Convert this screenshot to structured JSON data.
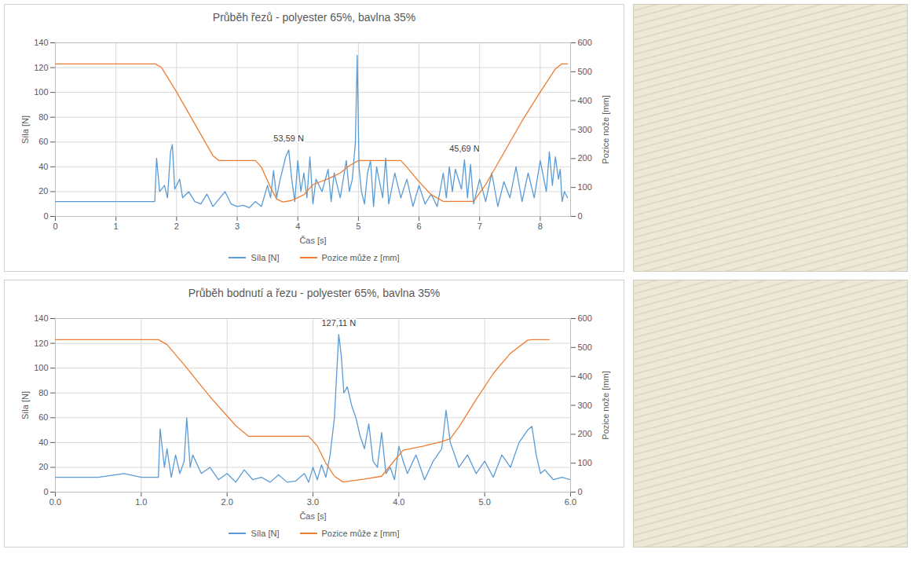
{
  "chart_data": [
    {
      "type": "line",
      "title": "Průběh řezů - polyester 65%, bavlna 35%",
      "x_label": "Čas [s]",
      "y_label": "Síla [N]",
      "y2_label": "Pozice nože [mm]",
      "xlim": [
        0,
        8.5
      ],
      "xticks": [
        0,
        1,
        2,
        3,
        4,
        5,
        6,
        7,
        8
      ],
      "ylim": [
        0,
        140
      ],
      "yticks": [
        0,
        20,
        40,
        60,
        80,
        100,
        120,
        140
      ],
      "y2lim": [
        0,
        600
      ],
      "y2ticks": [
        0,
        100,
        200,
        300,
        400,
        500,
        600
      ],
      "grid": true,
      "legend": "bottom",
      "series": [
        {
          "name": "Síla [N]",
          "color": "#5B9BD5",
          "x": [
            0,
            0.5,
            1.0,
            1.5,
            1.64,
            1.67,
            1.72,
            1.8,
            1.85,
            1.9,
            1.93,
            1.97,
            2.05,
            2.1,
            2.2,
            2.3,
            2.4,
            2.5,
            2.6,
            2.7,
            2.8,
            2.9,
            3.0,
            3.1,
            3.2,
            3.3,
            3.4,
            3.5,
            3.55,
            3.6,
            3.65,
            3.7,
            3.8,
            3.85,
            3.9,
            3.95,
            4.0,
            4.05,
            4.1,
            4.15,
            4.2,
            4.25,
            4.3,
            4.4,
            4.5,
            4.55,
            4.6,
            4.7,
            4.8,
            4.85,
            4.9,
            4.95,
            4.98,
            5.01,
            5.05,
            5.1,
            5.15,
            5.2,
            5.25,
            5.3,
            5.4,
            5.45,
            5.5,
            5.6,
            5.7,
            5.8,
            5.9,
            6.0,
            6.1,
            6.2,
            6.3,
            6.4,
            6.45,
            6.5,
            6.55,
            6.6,
            6.7,
            6.75,
            6.8,
            6.85,
            6.9,
            7.0,
            7.1,
            7.2,
            7.3,
            7.4,
            7.5,
            7.6,
            7.7,
            7.8,
            7.9,
            8.0,
            8.1,
            8.15,
            8.2,
            8.25,
            8.3,
            8.33,
            8.36,
            8.4,
            8.45
          ],
          "values": [
            12,
            12,
            12,
            12,
            12,
            47,
            20,
            25,
            15,
            52,
            58,
            22,
            30,
            15,
            20,
            12,
            10,
            18,
            8,
            14,
            20,
            10,
            8,
            9,
            7,
            12,
            8,
            25,
            15,
            37,
            15,
            28,
            48,
            53.59,
            30,
            12,
            45,
            20,
            35,
            15,
            48,
            10,
            30,
            20,
            38,
            12,
            35,
            15,
            45,
            20,
            30,
            60,
            130,
            40,
            20,
            10,
            35,
            45,
            8,
            40,
            15,
            47,
            10,
            35,
            15,
            30,
            8,
            25,
            10,
            18,
            8,
            35,
            15,
            40,
            20,
            38,
            22,
            45.69,
            15,
            42,
            10,
            30,
            12,
            35,
            8,
            28,
            15,
            40,
            12,
            35,
            15,
            45,
            20,
            52,
            25,
            48,
            30,
            38,
            12,
            20,
            15
          ]
        },
        {
          "name": "Pozice může z [mm]",
          "color": "#ED7D31",
          "axis": "y2",
          "x": [
            0,
            1.65,
            1.75,
            2.0,
            2.3,
            2.6,
            2.7,
            3.3,
            3.4,
            3.55,
            3.65,
            3.75,
            3.9,
            4.1,
            4.25,
            4.5,
            4.7,
            4.85,
            5.0,
            5.7,
            5.8,
            6.0,
            6.2,
            6.4,
            6.9,
            7.1,
            7.4,
            7.7,
            8.0,
            8.25,
            8.35,
            8.45
          ],
          "values": [
            527,
            527,
            515,
            430,
            320,
            210,
            193,
            193,
            170,
            100,
            60,
            50,
            55,
            75,
            110,
            130,
            150,
            175,
            193,
            193,
            170,
            120,
            75,
            52,
            52,
            110,
            220,
            330,
            430,
            510,
            527,
            527
          ]
        }
      ],
      "annotations": [
        {
          "x": 3.85,
          "y": 53.59,
          "label": "53,59 N"
        },
        {
          "x": 6.75,
          "y": 45.69,
          "label": "45,69 N"
        }
      ]
    },
    {
      "type": "line",
      "title": "Průběh bodnutí a řezu - polyester 65%, bavlna 35%",
      "x_label": "Čas [s]",
      "y_label": "Síla [N]",
      "y2_label": "Pozice nože [mm]",
      "xlim": [
        0,
        6
      ],
      "xticks": [
        0,
        1,
        2,
        3,
        4,
        5,
        6
      ],
      "ylim": [
        0,
        140
      ],
      "yticks": [
        0,
        20,
        40,
        60,
        80,
        100,
        120,
        140
      ],
      "y2lim": [
        0,
        600
      ],
      "y2ticks": [
        0,
        100,
        200,
        300,
        400,
        500,
        600
      ],
      "grid": true,
      "legend": "bottom",
      "series": [
        {
          "name": "Síla [N]",
          "color": "#5B9BD5",
          "x": [
            0,
            0.5,
            0.8,
            1.0,
            1.2,
            1.22,
            1.27,
            1.3,
            1.35,
            1.4,
            1.45,
            1.5,
            1.53,
            1.57,
            1.6,
            1.7,
            1.8,
            1.9,
            2.0,
            2.1,
            2.2,
            2.3,
            2.4,
            2.5,
            2.6,
            2.7,
            2.8,
            2.9,
            2.95,
            3.0,
            3.05,
            3.1,
            3.15,
            3.2,
            3.25,
            3.3,
            3.33,
            3.36,
            3.4,
            3.45,
            3.5,
            3.55,
            3.6,
            3.65,
            3.7,
            3.75,
            3.8,
            3.85,
            3.9,
            3.95,
            4.0,
            4.05,
            4.1,
            4.2,
            4.3,
            4.4,
            4.5,
            4.55,
            4.6,
            4.7,
            4.8,
            4.9,
            5.0,
            5.1,
            5.2,
            5.3,
            5.4,
            5.5,
            5.55,
            5.6,
            5.65,
            5.7,
            5.8,
            5.9,
            6.0
          ],
          "values": [
            12,
            12,
            15,
            12,
            12,
            51,
            20,
            35,
            12,
            30,
            15,
            25,
            60,
            20,
            30,
            15,
            20,
            10,
            15,
            8,
            18,
            10,
            12,
            8,
            14,
            8,
            9,
            15,
            8,
            20,
            10,
            22,
            12,
            30,
            60,
            127.11,
            110,
            80,
            85,
            70,
            60,
            45,
            35,
            55,
            25,
            20,
            48,
            15,
            20,
            10,
            37,
            25,
            15,
            30,
            10,
            25,
            35,
            66,
            40,
            20,
            30,
            15,
            25,
            12,
            30,
            20,
            40,
            50,
            53,
            30,
            15,
            18,
            10,
            12,
            10
          ]
        },
        {
          "name": "Pozice může z [mm]",
          "color": "#ED7D31",
          "axis": "y2",
          "x": [
            0,
            1.2,
            1.3,
            1.5,
            1.8,
            2.1,
            2.25,
            2.95,
            3.05,
            3.15,
            3.25,
            3.35,
            3.6,
            3.8,
            3.95,
            4.05,
            4.3,
            4.5,
            4.6,
            4.7,
            4.9,
            5.1,
            5.3,
            5.5,
            5.55,
            5.75
          ],
          "values": [
            527,
            527,
            510,
            440,
            330,
            230,
            193,
            193,
            160,
            100,
            55,
            35,
            45,
            55,
            110,
            145,
            160,
            175,
            185,
            225,
            320,
            410,
            480,
            525,
            527,
            527
          ]
        }
      ],
      "annotations": [
        {
          "x": 3.3,
          "y": 127.11,
          "label": "127,11 N"
        }
      ]
    }
  ]
}
